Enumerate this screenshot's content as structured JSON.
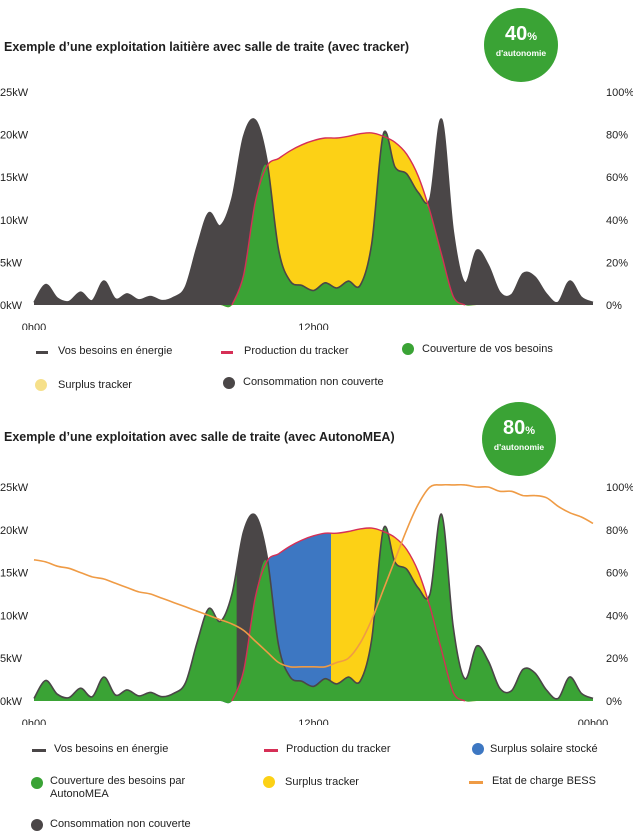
{
  "chart_data": [
    {
      "type": "area",
      "title": "Exemple d’une exploitation laitière avec salle de traite (avec tracker)",
      "badge": {
        "value": "40",
        "unit": "%",
        "label": "d'autonomie"
      },
      "y_left_ticks": [
        "25kW",
        "20kW",
        "15kW",
        "10kW",
        "5kW",
        "0kW"
      ],
      "y_right_ticks": [
        "100%",
        "80%",
        "60%",
        "40%",
        "20%",
        "0%"
      ],
      "x_ticks": [
        "0h00",
        "12h00"
      ],
      "ylim": [
        0,
        25
      ],
      "hours": [
        0,
        0.5,
        1,
        1.5,
        2,
        2.5,
        3,
        3.5,
        4,
        4.5,
        5,
        5.5,
        6,
        6.5,
        7,
        7.5,
        8,
        8.5,
        9,
        9.5,
        10,
        10.5,
        11,
        11.5,
        12,
        12.5,
        13,
        13.5,
        14,
        14.5,
        15,
        15.5,
        16,
        16.5,
        17,
        17.5,
        18,
        18.5,
        19,
        19.5,
        20,
        20.5,
        21,
        21.5,
        22,
        22.5,
        23,
        23.5,
        24
      ],
      "series": [
        {
          "name": "Vos besoins en énergie",
          "values": [
            0.3,
            2.4,
            0.8,
            0.4,
            1.5,
            0.5,
            2.8,
            0.7,
            1.3,
            0.6,
            1.0,
            0.5,
            0.9,
            2.1,
            6.8,
            10.8,
            9.3,
            12.5,
            19.8,
            21.7,
            17.0,
            6.5,
            2.8,
            2.3,
            1.7,
            2.6,
            2.0,
            2.8,
            2.3,
            7.2,
            20.1,
            16.2,
            15.4,
            13.2,
            12.5,
            21.8,
            8.6,
            2.6,
            6.4,
            4.7,
            1.5,
            1.2,
            3.7,
            3.3,
            1.3,
            0.3,
            2.8,
            0.9,
            0.3
          ]
        },
        {
          "name": "Production du tracker",
          "values": [
            0,
            0,
            0,
            0,
            0,
            0,
            0,
            0,
            0,
            0,
            0,
            0,
            0,
            0,
            0,
            0,
            0,
            0,
            3.5,
            12.1,
            16.3,
            17.2,
            18.1,
            18.8,
            19.3,
            19.6,
            19.6,
            19.8,
            20.1,
            20.2,
            19.8,
            19.1,
            17.7,
            15.1,
            11.0,
            5.9,
            1.0,
            0,
            0,
            0,
            0,
            0,
            0,
            0,
            0,
            0,
            0,
            0,
            0
          ]
        }
      ],
      "legend": [
        "Vos besoins en énergie",
        "Production du tracker",
        "Couverture de vos besoins",
        "Surplus tracker",
        "Consommation non couverte"
      ],
      "colors": {
        "demand": "#4a4647",
        "production": "#d62f56",
        "coverage": "#3aa335",
        "surplus": "#fcd116",
        "surplus_legend": "#f6e08a",
        "uncovered": "#4a4647"
      }
    },
    {
      "type": "area",
      "title": "Exemple d’une exploitation avec salle de traite (avec AutonoMEA)",
      "badge": {
        "value": "80",
        "unit": "%",
        "label": "d'autonomie"
      },
      "y_left_ticks": [
        "25kW",
        "20kW",
        "15kW",
        "10kW",
        "5kW",
        "0kW"
      ],
      "y_right_ticks": [
        "100%",
        "80%",
        "60%",
        "40%",
        "20%",
        "0%"
      ],
      "x_ticks": [
        "0h00",
        "12h00",
        "00h00"
      ],
      "ylim": [
        0,
        25
      ],
      "hours": [
        0,
        0.5,
        1,
        1.5,
        2,
        2.5,
        3,
        3.5,
        4,
        4.5,
        5,
        5.5,
        6,
        6.5,
        7,
        7.5,
        8,
        8.5,
        9,
        9.5,
        10,
        10.5,
        11,
        11.5,
        12,
        12.5,
        13,
        13.5,
        14,
        14.5,
        15,
        15.5,
        16,
        16.5,
        17,
        17.5,
        18,
        18.5,
        19,
        19.5,
        20,
        20.5,
        21,
        21.5,
        22,
        22.5,
        23,
        23.5,
        24
      ],
      "series": [
        {
          "name": "Vos besoins en énergie",
          "values": [
            0.3,
            2.4,
            0.8,
            0.4,
            1.5,
            0.5,
            2.8,
            0.7,
            1.3,
            0.6,
            1.0,
            0.5,
            0.9,
            2.1,
            6.8,
            10.8,
            9.3,
            12.5,
            19.8,
            21.7,
            17.0,
            6.5,
            2.8,
            2.3,
            1.7,
            2.6,
            2.0,
            2.8,
            2.3,
            7.2,
            20.1,
            16.2,
            15.4,
            13.2,
            12.5,
            21.8,
            8.6,
            2.6,
            6.4,
            4.7,
            1.5,
            1.2,
            3.7,
            3.3,
            1.3,
            0.3,
            2.8,
            0.9,
            0.3
          ]
        },
        {
          "name": "Production du tracker",
          "values": [
            0,
            0,
            0,
            0,
            0,
            0,
            0,
            0,
            0,
            0,
            0,
            0,
            0,
            0,
            0,
            0,
            0,
            0,
            3.5,
            12.1,
            16.3,
            17.2,
            18.1,
            18.8,
            19.3,
            19.6,
            19.6,
            19.8,
            20.1,
            20.2,
            19.8,
            19.1,
            17.7,
            15.1,
            11.0,
            5.9,
            1.0,
            0,
            0,
            0,
            0,
            0,
            0,
            0,
            0,
            0,
            0,
            0,
            0
          ]
        },
        {
          "name": "Etat de charge BESS",
          "axis": "right",
          "values": [
            66,
            65,
            63,
            62,
            60,
            58,
            57,
            55,
            53,
            51,
            50,
            48,
            46,
            44,
            42,
            40,
            38,
            36,
            33,
            28,
            23,
            18,
            16,
            16,
            16,
            16,
            18,
            20,
            27,
            38,
            52,
            66,
            80,
            92,
            100,
            101,
            101,
            101,
            100,
            100,
            98,
            98,
            96,
            96,
            95,
            91,
            88,
            86,
            83
          ]
        }
      ],
      "stored_surplus_until_hour": 12.75,
      "legend": [
        "Vos besoins en énergie",
        "Production du tracker",
        "Surplus solaire stocké",
        "Couverture des besoins par AutonoMEA",
        "Surplus tracker",
        "Etat de charge BESS",
        "Consommation non couverte"
      ],
      "colors": {
        "demand": "#4a4647",
        "production": "#d62f56",
        "stored": "#3d77c2",
        "coverage": "#3aa335",
        "surplus": "#fcd116",
        "bess": "#ef9b45",
        "uncovered": "#4a4647"
      }
    }
  ]
}
